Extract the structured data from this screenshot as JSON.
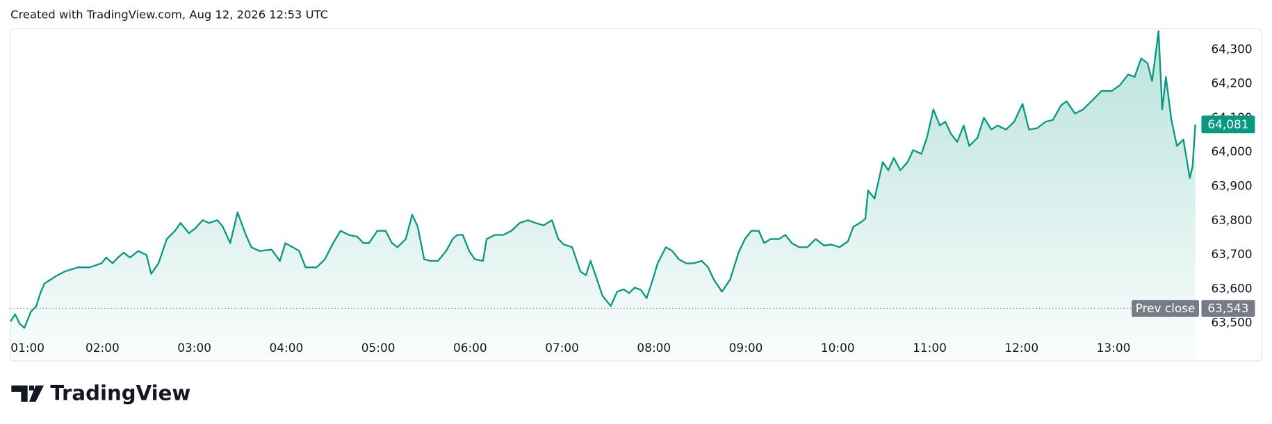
{
  "header": {
    "title": "Created with TradingView.com, Aug 12, 2026 12:53 UTC"
  },
  "logo": {
    "text": "TradingView"
  },
  "chart_data": {
    "type": "area",
    "color": "#089981",
    "x": [
      1.0,
      1.05,
      1.1,
      1.15,
      1.22,
      1.28,
      1.33,
      1.37,
      1.44,
      1.51,
      1.59,
      1.73,
      1.86,
      1.99,
      2.04,
      2.11,
      2.17,
      2.23,
      2.3,
      2.39,
      2.48,
      2.53,
      2.61,
      2.7,
      2.79,
      2.85,
      2.94,
      3.01,
      3.09,
      3.16,
      3.25,
      3.31,
      3.39,
      3.47,
      3.56,
      3.62,
      3.71,
      3.84,
      3.93,
      3.99,
      4.07,
      4.14,
      4.21,
      4.33,
      4.42,
      4.51,
      4.59,
      4.68,
      4.77,
      4.84,
      4.9,
      4.99,
      5.08,
      5.15,
      5.21,
      5.3,
      5.37,
      5.43,
      5.5,
      5.57,
      5.65,
      5.74,
      5.81,
      5.86,
      5.92,
      5.99,
      6.05,
      6.14,
      6.18,
      6.27,
      6.36,
      6.45,
      6.54,
      6.63,
      6.71,
      6.8,
      6.89,
      6.96,
      7.02,
      7.11,
      7.2,
      7.26,
      7.31,
      7.38,
      7.44,
      7.53,
      7.6,
      7.67,
      7.73,
      7.79,
      7.86,
      7.92,
      7.98,
      8.04,
      8.13,
      8.2,
      8.27,
      8.35,
      8.43,
      8.52,
      8.59,
      8.65,
      8.74,
      8.83,
      8.92,
      8.99,
      9.06,
      9.14,
      9.2,
      9.27,
      9.36,
      9.43,
      9.5,
      9.58,
      9.67,
      9.76,
      9.85,
      9.93,
      10.02,
      10.11,
      10.17,
      10.24,
      10.3,
      10.33,
      10.4,
      10.49,
      10.55,
      10.61,
      10.68,
      10.76,
      10.82,
      10.91,
      10.97,
      11.04,
      11.11,
      11.17,
      11.23,
      11.3,
      11.37,
      11.43,
      11.52,
      11.59,
      11.67,
      11.74,
      11.83,
      11.92,
      12.01,
      12.08,
      12.17,
      12.26,
      12.34,
      12.43,
      12.49,
      12.58,
      12.67,
      12.76,
      12.87,
      12.98,
      13.07,
      13.16,
      13.23,
      13.3,
      13.37,
      13.42,
      13.49,
      13.53,
      13.57,
      13.63,
      13.69,
      13.76,
      13.83,
      13.86,
      13.89
    ],
    "values": [
      63505,
      63526,
      63498,
      63486,
      63533,
      63550,
      63592,
      63616,
      63628,
      63640,
      63651,
      63663,
      63663,
      63675,
      63692,
      63675,
      63692,
      63706,
      63692,
      63711,
      63699,
      63644,
      63675,
      63746,
      63770,
      63793,
      63763,
      63777,
      63801,
      63793,
      63801,
      63782,
      63734,
      63824,
      63758,
      63722,
      63711,
      63715,
      63682,
      63734,
      63722,
      63711,
      63663,
      63663,
      63687,
      63734,
      63770,
      63758,
      63753,
      63734,
      63734,
      63770,
      63770,
      63734,
      63722,
      63746,
      63817,
      63782,
      63687,
      63682,
      63682,
      63711,
      63746,
      63758,
      63758,
      63711,
      63687,
      63682,
      63746,
      63758,
      63758,
      63770,
      63793,
      63801,
      63793,
      63786,
      63801,
      63746,
      63730,
      63722,
      63651,
      63640,
      63682,
      63628,
      63580,
      63550,
      63592,
      63599,
      63588,
      63604,
      63597,
      63573,
      63621,
      63675,
      63722,
      63711,
      63687,
      63675,
      63675,
      63682,
      63663,
      63628,
      63592,
      63628,
      63706,
      63746,
      63770,
      63770,
      63734,
      63746,
      63746,
      63758,
      63734,
      63722,
      63722,
      63746,
      63727,
      63730,
      63722,
      63739,
      63782,
      63793,
      63805,
      63888,
      63864,
      63971,
      63947,
      63983,
      63947,
      63971,
      64006,
      63995,
      64042,
      64125,
      64078,
      64089,
      64054,
      64030,
      64078,
      64018,
      64042,
      64101,
      64066,
      64078,
      64066,
      64089,
      64141,
      64066,
      64070,
      64089,
      64094,
      64137,
      64149,
      64113,
      64125,
      64149,
      64179,
      64179,
      64196,
      64227,
      64220,
      64274,
      64260,
      64208,
      64354,
      64125,
      64220,
      64094,
      64018,
      64037,
      63924,
      63959,
      64081
    ],
    "xlim": [
      1,
      13.93
    ],
    "ylim": [
      63391,
      64362
    ],
    "xticks": [
      {
        "value": 1,
        "label": "01:00"
      },
      {
        "value": 2,
        "label": "02:00"
      },
      {
        "value": 3,
        "label": "03:00"
      },
      {
        "value": 4,
        "label": "04:00"
      },
      {
        "value": 5,
        "label": "05:00"
      },
      {
        "value": 6,
        "label": "06:00"
      },
      {
        "value": 7,
        "label": "07:00"
      },
      {
        "value": 8,
        "label": "08:00"
      },
      {
        "value": 9,
        "label": "09:00"
      },
      {
        "value": 10,
        "label": "10:00"
      },
      {
        "value": 11,
        "label": "11:00"
      },
      {
        "value": 12,
        "label": "12:00"
      },
      {
        "value": 13,
        "label": "13:00"
      }
    ],
    "yticks": [
      {
        "value": 63500,
        "label": "63,500"
      },
      {
        "value": 63600,
        "label": "63,600"
      },
      {
        "value": 63700,
        "label": "63,700"
      },
      {
        "value": 63800,
        "label": "63,800"
      },
      {
        "value": 63900,
        "label": "63,900"
      },
      {
        "value": 64000,
        "label": "64,000"
      },
      {
        "value": 64100,
        "label": "64,100"
      },
      {
        "value": 64200,
        "label": "64,200"
      },
      {
        "value": 64300,
        "label": "64,300"
      }
    ],
    "last_price": {
      "value": 64081,
      "label": "64,081"
    },
    "prev_close": {
      "name": "Prev close",
      "value": 63543,
      "label": "63,543",
      "color": "#787b86"
    }
  }
}
